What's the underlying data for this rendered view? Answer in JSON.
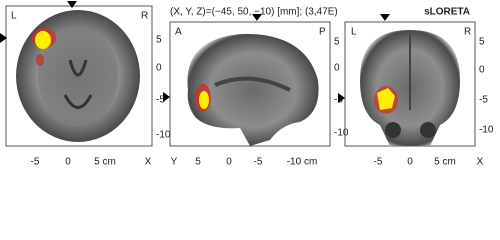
{
  "header": {
    "coordinates": "(X, Y, Z)=(−45, 50, −10) [mm]; (3,47E)",
    "method": "sLORETA"
  },
  "axial": {
    "left": "L",
    "right": "R",
    "right_ticks": [
      "5",
      "0",
      "-5",
      "-10"
    ],
    "bottom_ticks": [
      "-5",
      "0",
      "5 cm"
    ],
    "bottom_axis": "X"
  },
  "sagittal": {
    "left": "A",
    "right": "P",
    "right_ticks": [
      "5",
      "0",
      "-5",
      "-10"
    ],
    "bottom_axis": "Y",
    "bottom_ticks": [
      "5",
      "0",
      "-5",
      "-10 cm"
    ]
  },
  "coronal": {
    "left": "L",
    "right": "R",
    "right_ticks": [
      "5",
      "0",
      "-5",
      "-10"
    ],
    "bottom_ticks": [
      "-5",
      "0",
      "5 cm"
    ],
    "bottom_axis": "X"
  }
}
